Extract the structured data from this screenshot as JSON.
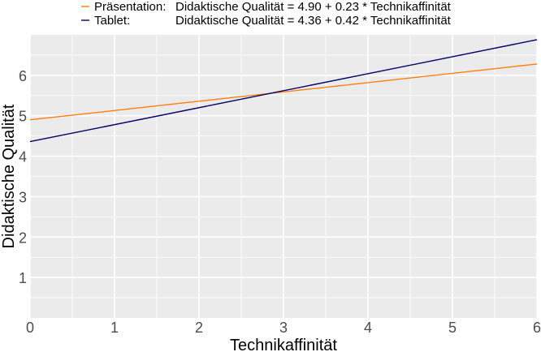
{
  "chart_data": {
    "type": "line",
    "xlabel": "Technikaffinität",
    "ylabel": "Didaktische Qualität",
    "xlim": [
      0,
      6
    ],
    "ylim": [
      0,
      7
    ],
    "x_ticks": [
      0,
      1,
      2,
      3,
      4,
      5,
      6
    ],
    "y_ticks": [
      1,
      2,
      3,
      4,
      5,
      6
    ],
    "grid": true,
    "legend_position": "top",
    "series": [
      {
        "name": "Präsentation:",
        "equation": "Didaktische Qualität = 4.90 + 0.23 * Technikaffinität",
        "intercept": 4.9,
        "slope": 0.23,
        "x": [
          0,
          6
        ],
        "y": [
          4.9,
          6.28
        ],
        "color": "#ff7f0e"
      },
      {
        "name": "Tablet:",
        "equation": "Didaktische Qualität = 4.36 + 0.42 * Technikaffinität",
        "intercept": 4.36,
        "slope": 0.42,
        "x": [
          0,
          6
        ],
        "y": [
          4.36,
          6.88
        ],
        "color": "#000066"
      }
    ],
    "panel_background": "#ebebeb",
    "grid_color": "#ffffff"
  }
}
